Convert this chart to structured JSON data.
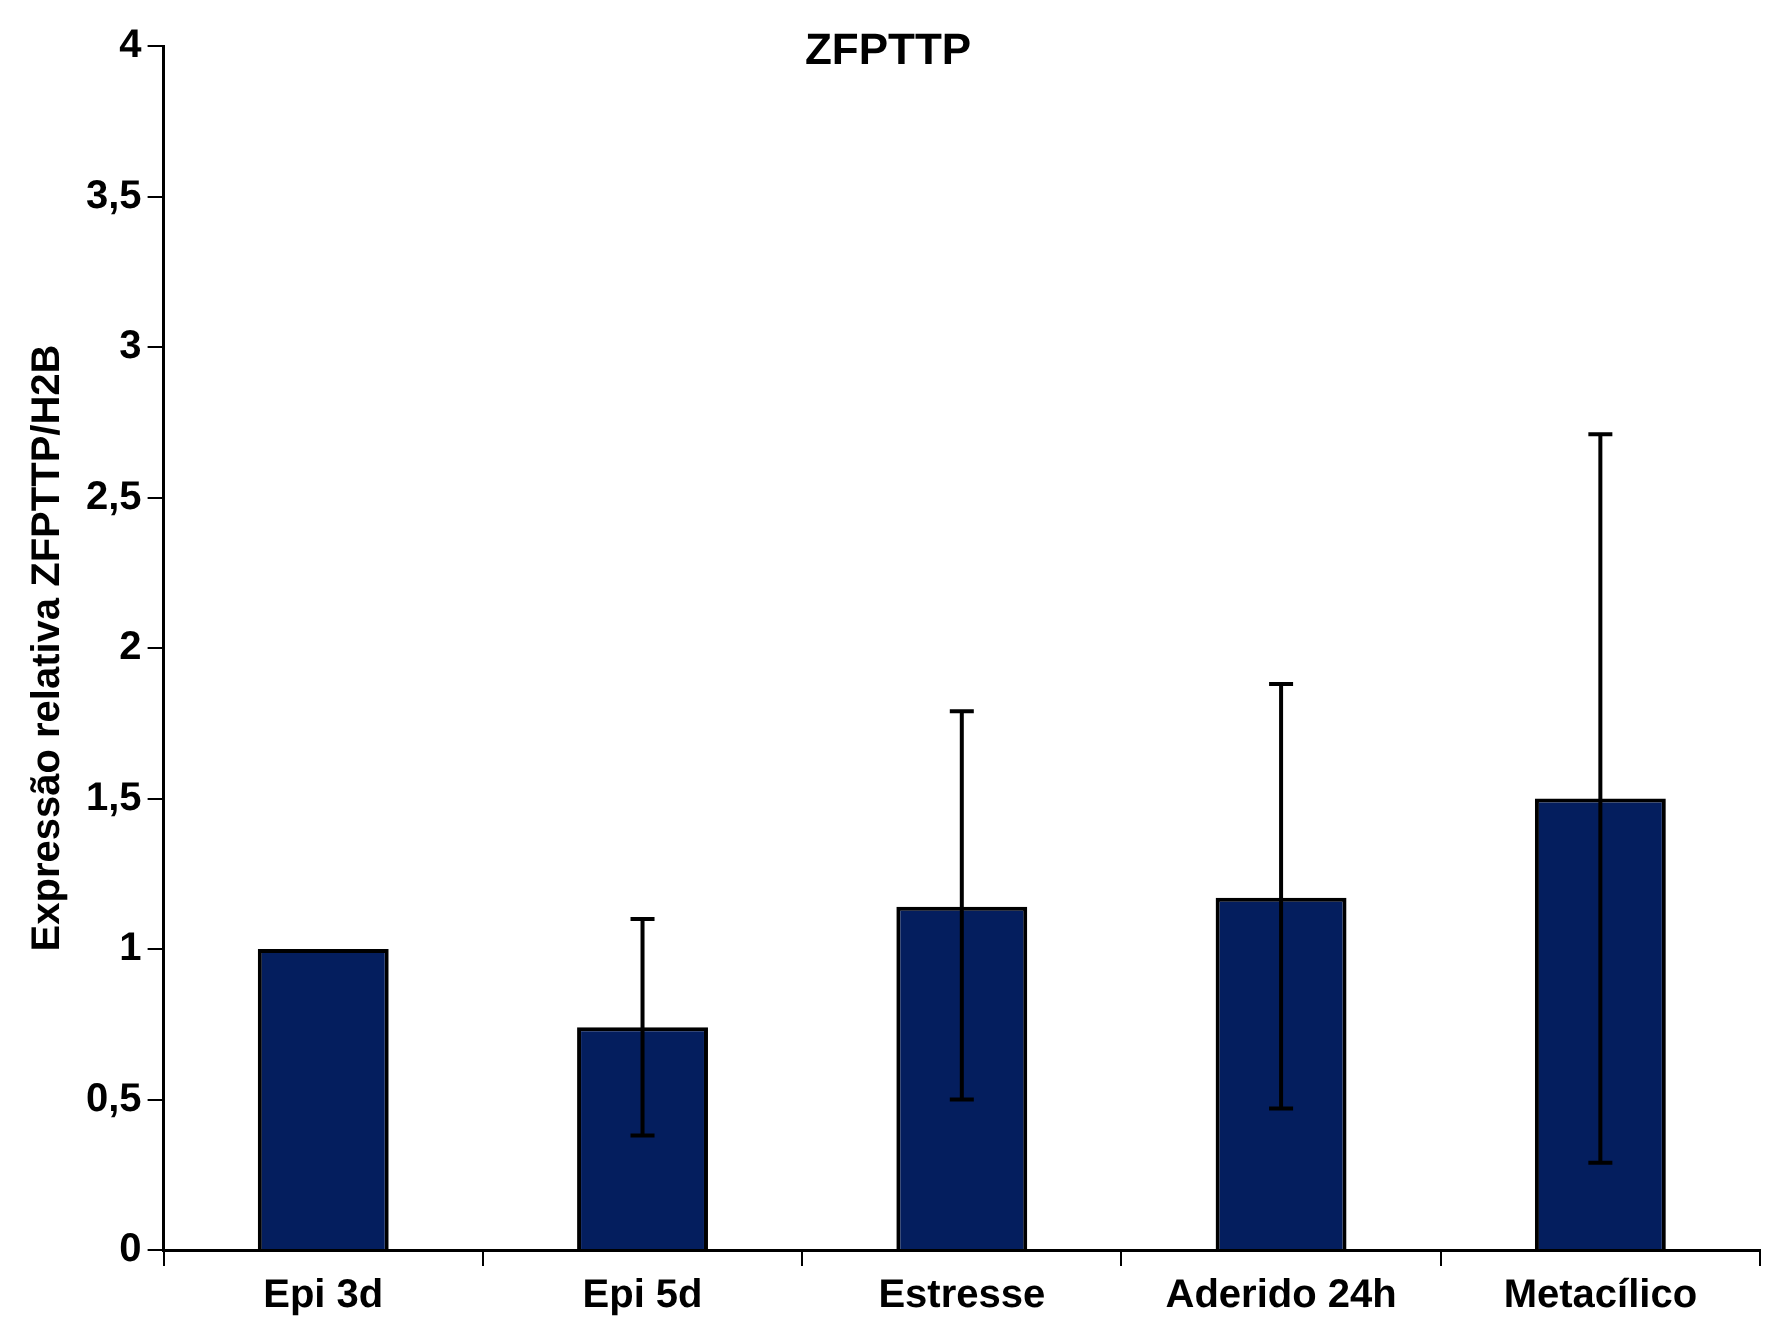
{
  "chart_data": {
    "type": "bar",
    "title": "ZFPTTP",
    "ylabel": "Expressão relativa ZFPTTP/H2B",
    "categories": [
      "Epi 3d",
      "Epi 5d",
      "Estresse",
      "Aderido 24h",
      "Metacílico"
    ],
    "values": [
      1,
      0.74,
      1.14,
      1.17,
      1.5
    ],
    "errors": [
      null,
      [
        0.38,
        1.1
      ],
      [
        0.5,
        1.79
      ],
      [
        0.47,
        1.88
      ],
      [
        0.29,
        2.71
      ]
    ],
    "color": "#041e5e",
    "ylim": [
      0,
      4
    ],
    "yticks": [
      0,
      {
        "value": 0.5,
        "label": "0,5"
      },
      1,
      {
        "value": 1.5,
        "label": "1,5"
      },
      2,
      {
        "value": 2.5,
        "label": "2,5"
      },
      3,
      {
        "value": 3.5,
        "label": "3,5"
      },
      4
    ],
    "grid": false,
    "legend": false
  }
}
